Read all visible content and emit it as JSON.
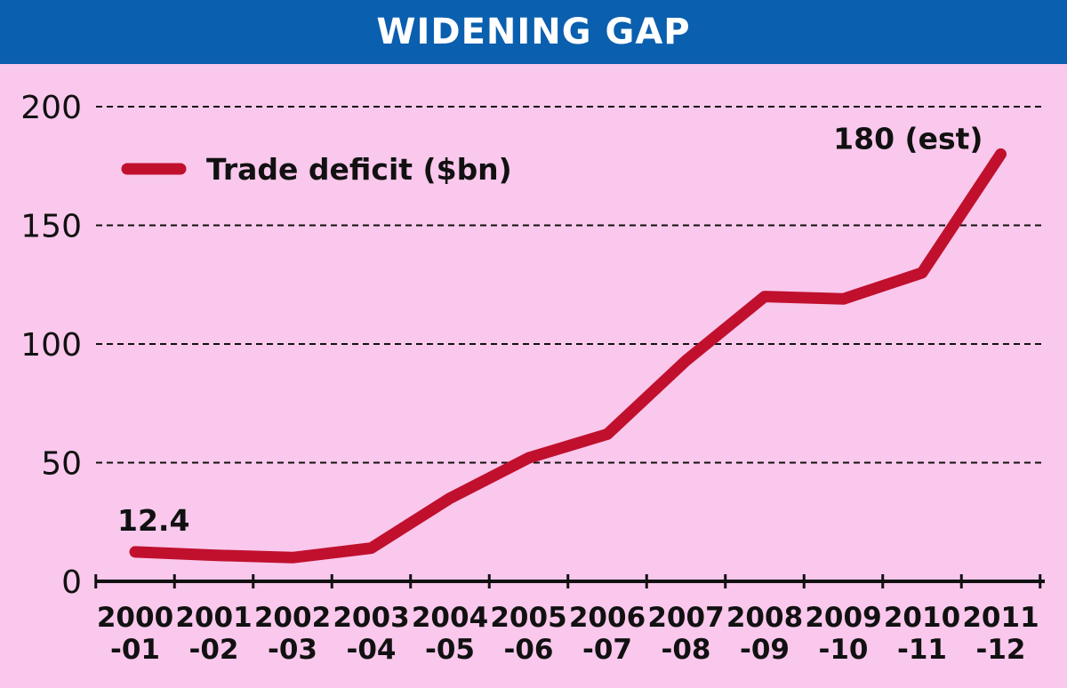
{
  "chart_data": {
    "type": "line",
    "title": "WIDENING GAP",
    "categories": [
      [
        "2000",
        "-01"
      ],
      [
        "2001",
        "-02"
      ],
      [
        "2002",
        "-03"
      ],
      [
        "2003",
        "-04"
      ],
      [
        "2004",
        "-05"
      ],
      [
        "2005",
        "-06"
      ],
      [
        "2006",
        "-07"
      ],
      [
        "2007",
        "-08"
      ],
      [
        "2008",
        "-09"
      ],
      [
        "2009",
        "-10"
      ],
      [
        "2010",
        "-11"
      ],
      [
        "2011",
        "-12"
      ]
    ],
    "series": [
      {
        "name": "Trade deficit ($bn)",
        "values": [
          12.4,
          11,
          10,
          14,
          35,
          52,
          62,
          93,
          120,
          119,
          130,
          180
        ]
      }
    ],
    "yticks": [
      "0",
      "50",
      "100",
      "150",
      "200"
    ],
    "ylim": [
      0,
      200
    ],
    "grid": true,
    "legend": "top-left",
    "annotations": [
      "12.4",
      "180 (est)"
    ],
    "colors": {
      "line": "#c0102e",
      "background": "#f9c8ec",
      "title_bar": "#0a5fae"
    }
  }
}
